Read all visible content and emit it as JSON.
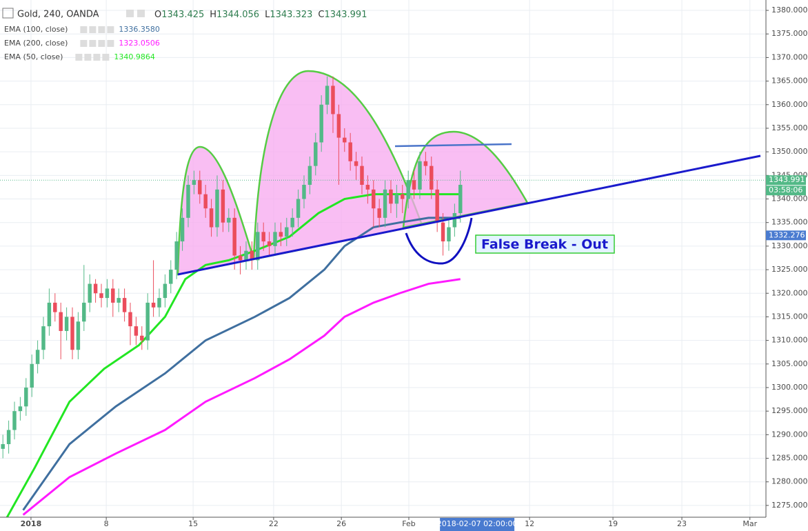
{
  "chart_data": {
    "type": "candlestick",
    "symbol": "Gold, 240, OANDA",
    "ohlc": [
      {
        "label": "O",
        "value": 1343.425
      },
      {
        "label": "H",
        "value": 1344.056
      },
      {
        "label": "L",
        "value": 1343.323
      },
      {
        "label": "C",
        "value": 1343.991
      }
    ],
    "up_color": "#53b987",
    "down_color": "#eb4d5c",
    "x": [
      1,
      3,
      5,
      7,
      9,
      11,
      13,
      15,
      17,
      19,
      21,
      23,
      25,
      27,
      29,
      31,
      33,
      35,
      37,
      39,
      41,
      43,
      45,
      47,
      49,
      51,
      53,
      55,
      57,
      59,
      61,
      63,
      65,
      67,
      69,
      71,
      73,
      75,
      77,
      79,
      81,
      83,
      85,
      87,
      89,
      91,
      93,
      95,
      97,
      99,
      101,
      103,
      105,
      107,
      109,
      111,
      113,
      115,
      117,
      119,
      121,
      123,
      125,
      127,
      129,
      131,
      133,
      135,
      137,
      139,
      141,
      143,
      145,
      147,
      149,
      151,
      153,
      155,
      157,
      159
    ],
    "open": [
      1287,
      1288,
      1291,
      1295,
      1296,
      1300,
      1305,
      1308,
      1313,
      1318,
      1316,
      1312,
      1315,
      1308,
      1314,
      1318,
      1322,
      1320,
      1319,
      1321,
      1318,
      1319,
      1316,
      1313,
      1311,
      1310,
      1318,
      1317,
      1319,
      1322,
      1325,
      1331,
      1336,
      1343,
      1344,
      1341,
      1338,
      1334,
      1342,
      1335,
      1336,
      1328,
      1327,
      1329,
      1327,
      1333,
      1331,
      1330,
      1333,
      1332,
      1334,
      1336,
      1340,
      1343,
      1347,
      1352,
      1360,
      1364,
      1358,
      1353,
      1352,
      1348,
      1347,
      1343,
      1342,
      1338,
      1336,
      1342,
      1339,
      1341,
      1340,
      1344,
      1342,
      1348,
      1347,
      1342,
      1335,
      1331,
      1334,
      1337
    ],
    "high": [
      1290,
      1293,
      1297,
      1298,
      1302,
      1307,
      1310,
      1315,
      1321,
      1320,
      1318,
      1317,
      1317,
      1316,
      1326,
      1324,
      1323,
      1322,
      1323,
      1323,
      1321,
      1321,
      1318,
      1315,
      1313,
      1320,
      1327,
      1321,
      1324,
      1327,
      1333,
      1338,
      1345,
      1346,
      1346,
      1343,
      1340,
      1345,
      1344,
      1338,
      1338,
      1330,
      1331,
      1331,
      1335,
      1335,
      1333,
      1335,
      1335,
      1336,
      1338,
      1342,
      1345,
      1349,
      1354,
      1362,
      1366,
      1366,
      1360,
      1355,
      1354,
      1350,
      1349,
      1345,
      1344,
      1340,
      1344,
      1344,
      1343,
      1343,
      1346,
      1346,
      1350,
      1350,
      1349,
      1344,
      1337,
      1336,
      1339,
      1346
    ],
    "low": [
      1285,
      1286,
      1289,
      1293,
      1294,
      1298,
      1303,
      1306,
      1311,
      1314,
      1306,
      1310,
      1306,
      1306,
      1312,
      1316,
      1318,
      1317,
      1317,
      1315,
      1316,
      1314,
      1309,
      1309,
      1308,
      1308,
      1315,
      1315,
      1317,
      1320,
      1323,
      1329,
      1334,
      1341,
      1339,
      1336,
      1332,
      1332,
      1333,
      1333,
      1325,
      1324,
      1325,
      1325,
      1325,
      1329,
      1328,
      1328,
      1330,
      1330,
      1332,
      1334,
      1338,
      1341,
      1345,
      1350,
      1358,
      1354,
      1343,
      1350,
      1346,
      1344,
      1341,
      1339,
      1334,
      1334,
      1334,
      1337,
      1336,
      1337,
      1338,
      1340,
      1340,
      1345,
      1340,
      1333,
      1328,
      1329,
      1332,
      1335
    ],
    "close": [
      1288,
      1291,
      1295,
      1296,
      1300,
      1305,
      1308,
      1313,
      1318,
      1316,
      1312,
      1315,
      1308,
      1314,
      1318,
      1322,
      1320,
      1319,
      1321,
      1318,
      1319,
      1316,
      1313,
      1311,
      1310,
      1318,
      1317,
      1319,
      1322,
      1325,
      1331,
      1336,
      1343,
      1344,
      1341,
      1338,
      1334,
      1342,
      1335,
      1336,
      1328,
      1327,
      1329,
      1327,
      1333,
      1331,
      1330,
      1333,
      1332,
      1334,
      1336,
      1340,
      1343,
      1347,
      1352,
      1360,
      1364,
      1358,
      1353,
      1352,
      1348,
      1347,
      1343,
      1342,
      1338,
      1336,
      1342,
      1339,
      1341,
      1340,
      1344,
      1342,
      1348,
      1347,
      1342,
      1335,
      1331,
      1334,
      1337,
      1343
    ],
    "series": [
      {
        "name": "EMA (100, close)",
        "last_label": "1336.3580",
        "color": "#3f6f9f",
        "x": [
          8,
          24,
          40,
          57,
          71,
          88,
          100,
          112,
          119,
          129,
          138,
          148,
          159
        ],
        "values": [
          1274,
          1288,
          1296,
          1303,
          1310,
          1315,
          1319,
          1325,
          1330,
          1334,
          1335,
          1336,
          1336
        ]
      },
      {
        "name": "EMA (200, close)",
        "last_label": "1323.0506",
        "color": "#ff1aff",
        "x": [
          8,
          24,
          40,
          57,
          71,
          88,
          100,
          112,
          119,
          129,
          138,
          148,
          159
        ],
        "values": [
          1273,
          1281,
          1286,
          1291,
          1297,
          1302,
          1306,
          1311,
          1315,
          1318,
          1320,
          1322,
          1323
        ]
      },
      {
        "name": "EMA (50, close)",
        "last_label": "1340.9864",
        "color": "#22e622",
        "x": [
          2,
          12,
          24,
          36,
          48,
          57,
          64,
          71,
          79,
          88,
          100,
          110,
          119,
          129,
          138,
          148,
          159
        ],
        "values": [
          1272,
          1283,
          1297,
          1304,
          1309,
          1315,
          1323,
          1326,
          1327,
          1329,
          1332,
          1337,
          1340,
          1341,
          1341,
          1341,
          1341
        ]
      }
    ],
    "ylim": [
      1272.5,
      1382.2
    ],
    "yticks": [
      {
        "value": 1275,
        "label": "1275.000"
      },
      {
        "value": 1280,
        "label": "1280.000"
      },
      {
        "value": 1285,
        "label": "1285.000"
      },
      {
        "value": 1290,
        "label": "1290.000"
      },
      {
        "value": 1295,
        "label": "1295.000"
      },
      {
        "value": 1300,
        "label": "1300.000"
      },
      {
        "value": 1305,
        "label": "1305.000"
      },
      {
        "value": 1310,
        "label": "1310.000"
      },
      {
        "value": 1315,
        "label": "1315.000"
      },
      {
        "value": 1320,
        "label": "1320.000"
      },
      {
        "value": 1325,
        "label": "1325.000"
      },
      {
        "value": 1330,
        "label": "1330.000"
      },
      {
        "value": 1335,
        "label": "1335.000"
      },
      {
        "value": 1340,
        "label": "1340.000"
      },
      {
        "value": 1345,
        "label": "1345.000"
      },
      {
        "value": 1350,
        "label": "1350.000"
      },
      {
        "value": 1355,
        "label": "1355.000"
      },
      {
        "value": 1360,
        "label": "1360.000"
      },
      {
        "value": 1365,
        "label": "1365.000"
      },
      {
        "value": 1370,
        "label": "1370.000"
      },
      {
        "value": 1375,
        "label": "1375.000"
      },
      {
        "value": 1380,
        "label": "1380.000"
      }
    ],
    "xlim": [
      0,
      264.3
    ],
    "xticks": [
      {
        "value": 10.7,
        "label": "2018"
      },
      {
        "value": 36.7,
        "label": "8"
      },
      {
        "value": 66.7,
        "label": "15"
      },
      {
        "value": 94.5,
        "label": "22"
      },
      {
        "value": 117.9,
        "label": "26"
      },
      {
        "value": 141.2,
        "label": "Feb"
      },
      {
        "value": 182.9,
        "label": "12"
      },
      {
        "value": 211.7,
        "label": "19"
      },
      {
        "value": 235.5,
        "label": "23"
      },
      {
        "value": 259,
        "label": "Mar"
      }
    ],
    "crosshair": {
      "x": 164.8,
      "label": "2018-02-07 02:00:00"
    },
    "price_labels": [
      {
        "value": 1343.991,
        "color": "#53b987"
      },
      {
        "value": 1332.276,
        "color": "#4a7bd0"
      }
    ],
    "countdown": "03:58:06",
    "annotation": "False Break - Out",
    "grid": true
  }
}
